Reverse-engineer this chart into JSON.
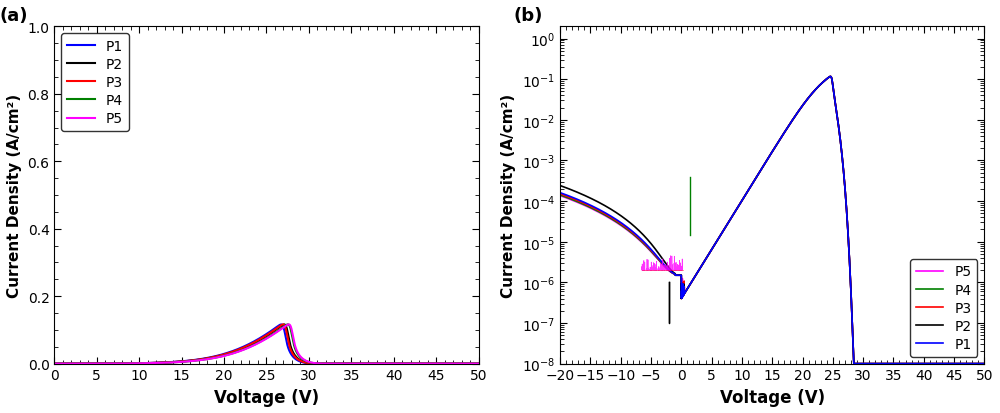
{
  "panel_a": {
    "xlabel": "Voltage (V)",
    "ylabel": "Current Density (A/cm²)",
    "xlim": [
      0,
      50
    ],
    "ylim": [
      0,
      1.0
    ],
    "xticks": [
      0,
      5,
      10,
      15,
      20,
      25,
      30,
      35,
      40,
      45,
      50
    ],
    "yticks": [
      0.0,
      0.2,
      0.4,
      0.6,
      0.8,
      1.0
    ],
    "curves": [
      {
        "label": "P1",
        "color": "#0000ff",
        "turn_on": 5.5,
        "scale": 0.000395,
        "eta": 3.2
      },
      {
        "label": "P2",
        "color": "#000000",
        "turn_on": 5.5,
        "scale": 0.000355,
        "eta": 3.2
      },
      {
        "label": "P3",
        "color": "#ff0000",
        "turn_on": 5.5,
        "scale": 0.00037,
        "eta": 3.2
      },
      {
        "label": "P4",
        "color": "#008000",
        "turn_on": 5.5,
        "scale": 0.00031,
        "eta": 3.2
      },
      {
        "label": "P5",
        "color": "#ff00ff",
        "turn_on": 5.5,
        "scale": 0.0003,
        "eta": 3.2
      }
    ]
  },
  "panel_b": {
    "xlabel": "Voltage (V)",
    "ylabel": "Current Density (A/cm²)",
    "xlim": [
      -20,
      50
    ],
    "ylim_log": [
      1e-08,
      2.0
    ],
    "xticks": [
      -20,
      -15,
      -10,
      -5,
      0,
      5,
      10,
      15,
      20,
      25,
      30,
      35,
      40,
      45,
      50
    ],
    "curves": [
      {
        "label": "P1",
        "color": "#0000ff",
        "rev_leak": 0.00016,
        "eta": 1.8
      },
      {
        "label": "P2",
        "color": "#000000",
        "rev_leak": 0.00024,
        "eta": 1.8
      },
      {
        "label": "P3",
        "color": "#ff0000",
        "rev_leak": 0.00015,
        "eta": 1.8
      },
      {
        "label": "P4",
        "color": "#008000",
        "rev_leak": 0.00014,
        "eta": 1.8
      },
      {
        "label": "P5",
        "color": "#ff00ff",
        "rev_leak": 0.000135,
        "eta": 1.8
      }
    ]
  }
}
